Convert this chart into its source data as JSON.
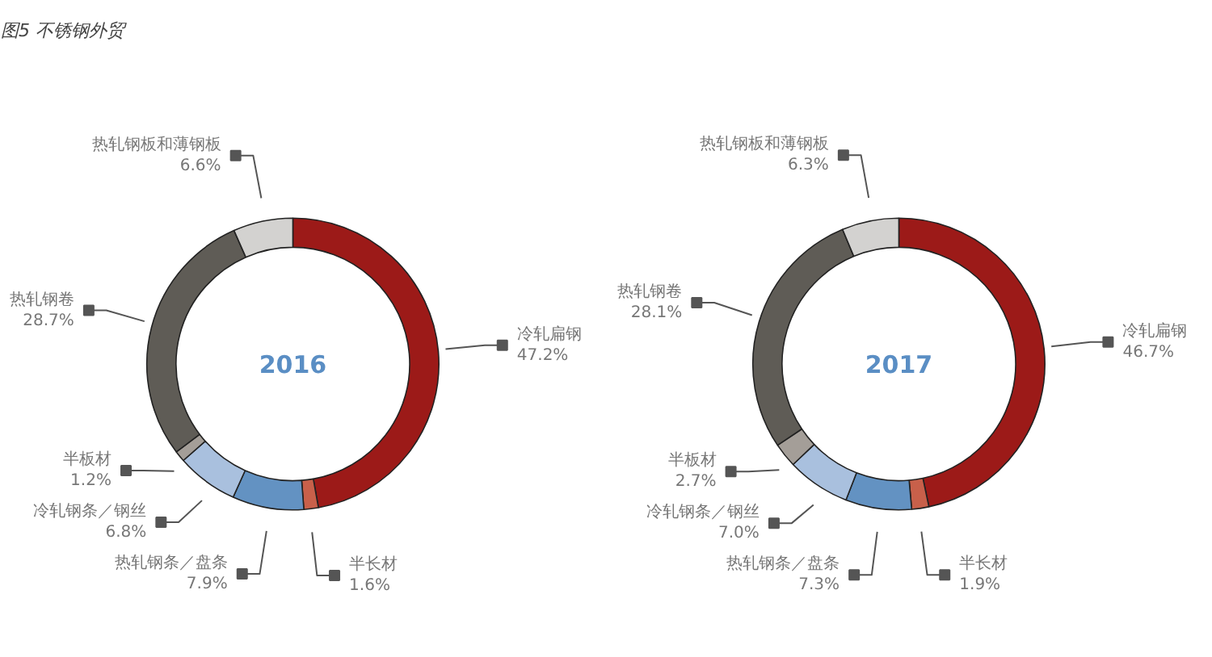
{
  "chart_data": [
    {
      "type": "donut",
      "title": "图5  不锈钢外贸",
      "annotations": [
        "2016"
      ],
      "categories": [
        "冷轧扁钢",
        "半长材",
        "热轧钢条／盘条",
        "冷轧钢条／钢丝",
        "半板材",
        "热轧钢卷",
        "热轧钢板和薄钢板"
      ],
      "values": [
        47.2,
        1.6,
        7.9,
        6.8,
        1.2,
        28.7,
        6.6
      ],
      "value_labels": [
        "47.2%",
        "1.6%",
        "7.9%",
        "6.8%",
        "1.2%",
        "28.7%",
        "6.6%"
      ],
      "colors": [
        "#9c1a18",
        "#c8604a",
        "#6392c2",
        "#a9c0de",
        "#a49e98",
        "#5f5c56",
        "#d3d2d0"
      ]
    },
    {
      "type": "donut",
      "annotations": [
        "2017"
      ],
      "categories": [
        "冷轧扁钢",
        "半长材",
        "热轧钢条／盘条",
        "冷轧钢条／钢丝",
        "半板材",
        "热轧钢卷",
        "热轧钢板和薄钢板"
      ],
      "values": [
        46.7,
        1.9,
        7.3,
        7.0,
        2.7,
        28.1,
        6.3
      ],
      "value_labels": [
        "46.7%",
        "1.9%",
        "7.3%",
        "7.0%",
        "2.7%",
        "28.1%",
        "6.3%"
      ],
      "colors": [
        "#9c1a18",
        "#c8604a",
        "#6392c2",
        "#a9c0de",
        "#a49e98",
        "#5f5c56",
        "#d3d2d0"
      ]
    }
  ]
}
